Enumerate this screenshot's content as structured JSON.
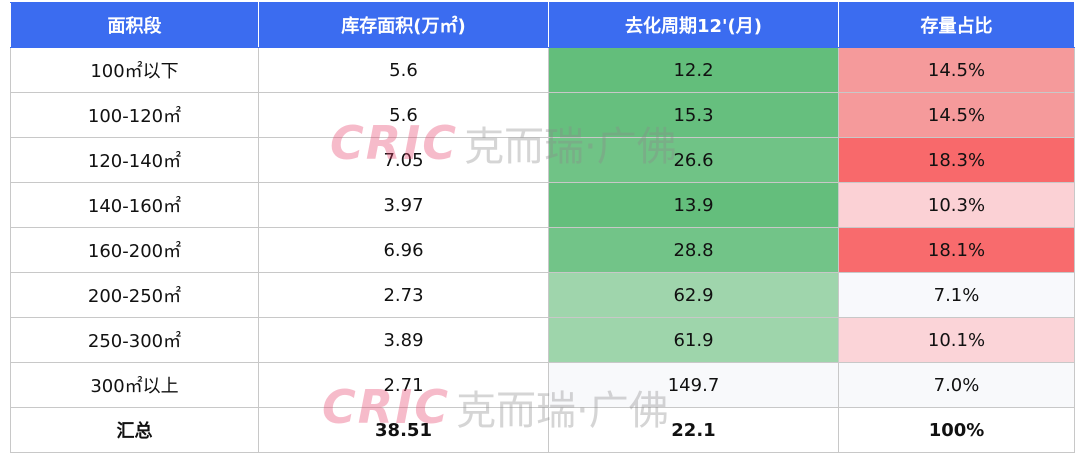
{
  "table": {
    "header": [
      "面积段",
      "库存面积(万㎡)",
      "去化周期12'(月)",
      "存量占比"
    ],
    "rows": [
      {
        "cells": [
          "100㎡以下",
          "5.6",
          "12.2",
          "14.5%"
        ],
        "fills": [
          "#ffffff",
          "#ffffff",
          "#63be7b",
          "#f59a9b"
        ]
      },
      {
        "cells": [
          "100-120㎡",
          "5.6",
          "15.3",
          "14.5%"
        ],
        "fills": [
          "#ffffff",
          "#ffffff",
          "#66bf7e",
          "#f59a9b"
        ]
      },
      {
        "cells": [
          "120-140㎡",
          "7.05",
          "26.6",
          "18.3%"
        ],
        "fills": [
          "#ffffff",
          "#ffffff",
          "#70c386",
          "#f8696b"
        ]
      },
      {
        "cells": [
          "140-160㎡",
          "3.97",
          "13.9",
          "10.3%"
        ],
        "fills": [
          "#ffffff",
          "#ffffff",
          "#64be7c",
          "#fbd1d5"
        ]
      },
      {
        "cells": [
          "160-200㎡",
          "6.96",
          "28.8",
          "18.1%"
        ],
        "fills": [
          "#ffffff",
          "#ffffff",
          "#72c488",
          "#f86b6d"
        ]
      },
      {
        "cells": [
          "200-250㎡",
          "2.73",
          "62.9",
          "7.1%"
        ],
        "fills": [
          "#ffffff",
          "#ffffff",
          "#9fd5ac",
          "#f8f9fc"
        ]
      },
      {
        "cells": [
          "250-300㎡",
          "3.89",
          "61.9",
          "10.1%"
        ],
        "fills": [
          "#ffffff",
          "#ffffff",
          "#9ed5ab",
          "#fbd4d8"
        ]
      },
      {
        "cells": [
          "300㎡以上",
          "2.71",
          "149.7",
          "7.0%"
        ],
        "fills": [
          "#ffffff",
          "#ffffff",
          "#f8f9fb",
          "#f8f9fb"
        ]
      }
    ],
    "total": [
      "汇总",
      "38.51",
      "22.1",
      "100%"
    ]
  },
  "watermark": {
    "logo": "CRIC",
    "text": "克而瑞·广佛"
  }
}
